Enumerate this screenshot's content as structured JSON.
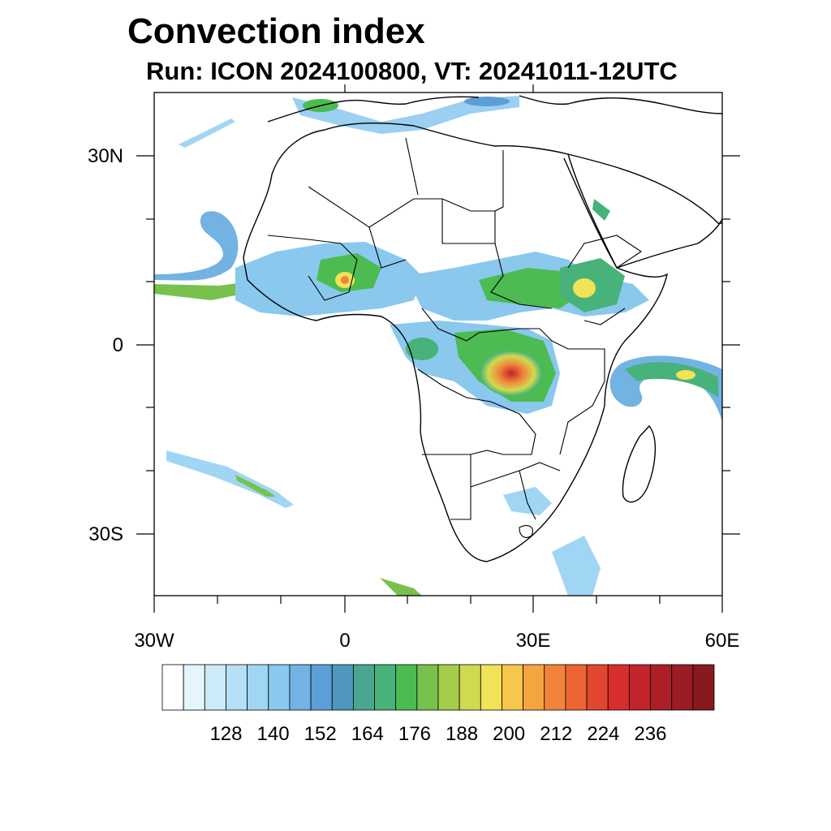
{
  "title": "Convection index",
  "subtitle": "Run: ICON 2024100800,  VT: 20241011-12UTC",
  "map": {
    "x_ticks": [
      "30W",
      "0",
      "30E",
      "60E"
    ],
    "y_ticks": [
      "30N",
      "0",
      "30S"
    ]
  },
  "colorbar": {
    "labels": [
      "128",
      "140",
      "152",
      "164",
      "176",
      "188",
      "200",
      "212",
      "224",
      "236"
    ],
    "colors": [
      "#ffffff",
      "#e6f5fc",
      "#cdeaf8",
      "#b6e0f6",
      "#a0d6f3",
      "#8ac8ee",
      "#72b3e4",
      "#5c9ed7",
      "#4f97bd",
      "#4aa593",
      "#47b279",
      "#4cbb52",
      "#78c14c",
      "#a5cd4c",
      "#d1da4f",
      "#f1e257",
      "#f7c64c",
      "#f5a540",
      "#f2843a",
      "#ec6533",
      "#e2462e",
      "#d82d2c",
      "#c1242a",
      "#ad1f27",
      "#9b1c23",
      "#871a1f"
    ]
  }
}
